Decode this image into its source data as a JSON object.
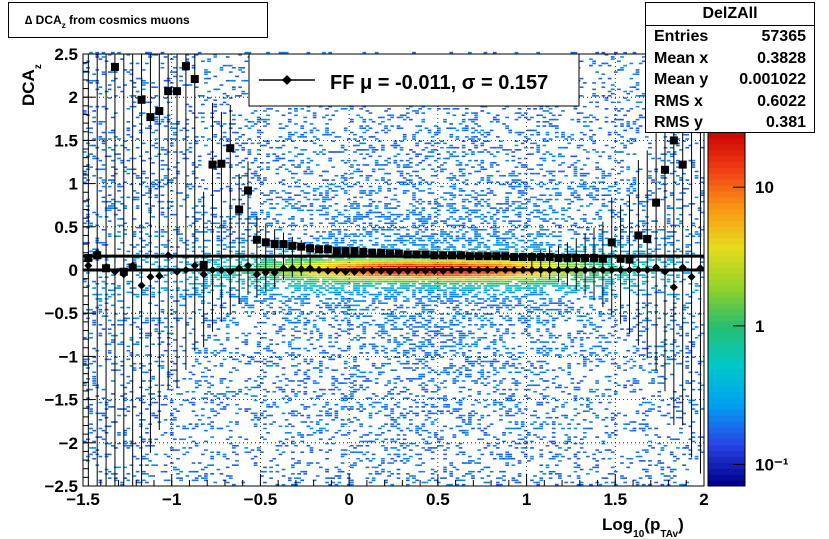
{
  "title": {
    "main": "∆ DCA",
    "sub": "z",
    "rest": "  from cosmics muons"
  },
  "stats": {
    "name": "DelZAll",
    "rows": [
      {
        "k": "Entries",
        "v": "57365"
      },
      {
        "k": "Mean x",
        "v": "0.3828"
      },
      {
        "k": "Mean y",
        "v": "0.001022"
      },
      {
        "k": "RMS x",
        "v": "0.6022"
      },
      {
        "k": "RMS y",
        "v": "0.381"
      }
    ]
  },
  "legend": {
    "label": "FF μ = -0.011, σ =   0.157"
  },
  "axes": {
    "xlabel_main": "Log",
    "xlabel_sub1": "10",
    "xlabel_paren": "(p",
    "xlabel_sub2": "TAv",
    "xlabel_close": ")",
    "ylabel_main": "DCA",
    "ylabel_sub": "z"
  },
  "chart_data": {
    "type": "heatmap",
    "xlim": [
      -1.5,
      2
    ],
    "ylim": [
      -2.5,
      2.5
    ],
    "x_ticks": [
      "−1.5",
      "−1",
      "−0.5",
      "0",
      "0.5",
      "1",
      "1.5",
      "2"
    ],
    "x_tick_values": [
      -1.5,
      -1,
      -0.5,
      0,
      0.5,
      1,
      1.5,
      2
    ],
    "y_ticks": [
      "2.5",
      "2",
      "1.5",
      "1",
      "0.5",
      "0",
      "−0.5",
      "−1",
      "−1.5",
      "−2",
      "−2.5"
    ],
    "y_tick_values": [
      2.5,
      2,
      1.5,
      1,
      0.5,
      0,
      -0.5,
      -1,
      -1.5,
      -2,
      -2.5
    ],
    "grid": true,
    "z_scale": "log",
    "z_ticks": [
      "10",
      "1",
      "10⁻¹"
    ],
    "z_tick_values": [
      10,
      1,
      0.1
    ],
    "series": [
      {
        "type": "markers-square",
        "x": [
          -1.47,
          -1.42,
          -1.37,
          -1.32,
          -1.27,
          -1.22,
          -1.17,
          -1.12,
          -1.07,
          -1.02,
          -0.97,
          -0.92,
          -0.87,
          -0.82,
          -0.77,
          -0.72,
          -0.67,
          -0.62,
          -0.57,
          -0.52,
          -0.47,
          -0.42,
          -0.37,
          -0.32,
          -0.27,
          -0.22,
          -0.17,
          -0.12,
          -0.07,
          -0.02,
          0.03,
          0.08,
          0.13,
          0.18,
          0.23,
          0.28,
          0.33,
          0.38,
          0.43,
          0.48,
          0.53,
          0.58,
          0.63,
          0.68,
          0.73,
          0.78,
          0.83,
          0.88,
          0.93,
          0.98,
          1.03,
          1.08,
          1.13,
          1.18,
          1.23,
          1.28,
          1.33,
          1.38,
          1.43,
          1.48,
          1.53,
          1.58,
          1.63,
          1.68,
          1.73,
          1.78,
          1.83,
          1.88,
          1.93,
          1.98
        ],
        "y": [
          0.14,
          0.17,
          0.02,
          2.35,
          -0.02,
          0.03,
          1.97,
          1.77,
          1.84,
          2.07,
          2.07,
          2.36,
          2.21,
          0.06,
          1.22,
          1.23,
          1.41,
          0.7,
          0.92,
          0.35,
          0.32,
          0.3,
          0.3,
          0.28,
          0.27,
          0.25,
          0.24,
          0.24,
          0.22,
          0.22,
          0.22,
          0.21,
          0.2,
          0.2,
          0.19,
          0.19,
          0.18,
          0.18,
          0.18,
          0.17,
          0.17,
          0.17,
          0.17,
          0.16,
          0.16,
          0.16,
          0.16,
          0.16,
          0.15,
          0.15,
          0.15,
          0.15,
          0.15,
          0.14,
          0.14,
          0.14,
          0.14,
          0.14,
          0.13,
          0.32,
          0.13,
          0.12,
          0.4,
          0.36,
          0.78,
          1.16,
          1.5,
          1.22,
          2.32,
          1.66
        ]
      },
      {
        "type": "markers-diamond",
        "name": "FF",
        "x": [
          -1.47,
          -1.42,
          -1.37,
          -1.32,
          -1.27,
          -1.22,
          -1.17,
          -1.12,
          -1.07,
          -1.02,
          -0.97,
          -0.92,
          -0.87,
          -0.82,
          -0.77,
          -0.72,
          -0.67,
          -0.62,
          -0.57,
          -0.52,
          -0.47,
          -0.42,
          -0.37,
          -0.32,
          -0.27,
          -0.22,
          -0.17,
          -0.12,
          -0.07,
          -0.02,
          0.03,
          0.08,
          0.13,
          0.18,
          0.23,
          0.28,
          0.33,
          0.38,
          0.43,
          0.48,
          0.53,
          0.58,
          0.63,
          0.68,
          0.73,
          0.78,
          0.83,
          0.88,
          0.93,
          0.98,
          1.03,
          1.08,
          1.13,
          1.18,
          1.23,
          1.28,
          1.33,
          1.38,
          1.43,
          1.48,
          1.53,
          1.58,
          1.63,
          1.68,
          1.73,
          1.78,
          1.83,
          1.88,
          1.93,
          1.98
        ],
        "y": [
          0.05,
          0.2,
          0.03,
          -0.02,
          -0.05,
          0.05,
          -0.18,
          -0.08,
          -0.07,
          0.17,
          -0.02,
          0.0,
          0.05,
          -0.05,
          0.0,
          0.0,
          -0.02,
          0.02,
          0.05,
          -0.05,
          -0.03,
          -0.03,
          0.02,
          0.02,
          0.01,
          0.02,
          0.0,
          -0.01,
          -0.01,
          -0.02,
          -0.02,
          -0.01,
          -0.01,
          -0.01,
          -0.02,
          -0.01,
          -0.01,
          -0.01,
          -0.01,
          -0.01,
          -0.01,
          0.0,
          0.0,
          0.0,
          0.0,
          0.0,
          0.0,
          0.0,
          0.0,
          0.0,
          0.0,
          0.0,
          0.0,
          0.0,
          0.0,
          0.0,
          0.0,
          0.0,
          0.0,
          0.0,
          0.0,
          0.0,
          0.0,
          0.0,
          0.03,
          -0.02,
          -0.2,
          0.03,
          -0.08,
          0.02
        ]
      }
    ],
    "fit_lines": [
      {
        "y": 0.16,
        "x": [
          -1.5,
          2
        ]
      },
      {
        "y": 0.0,
        "x": [
          -1.5,
          2
        ]
      }
    ]
  }
}
